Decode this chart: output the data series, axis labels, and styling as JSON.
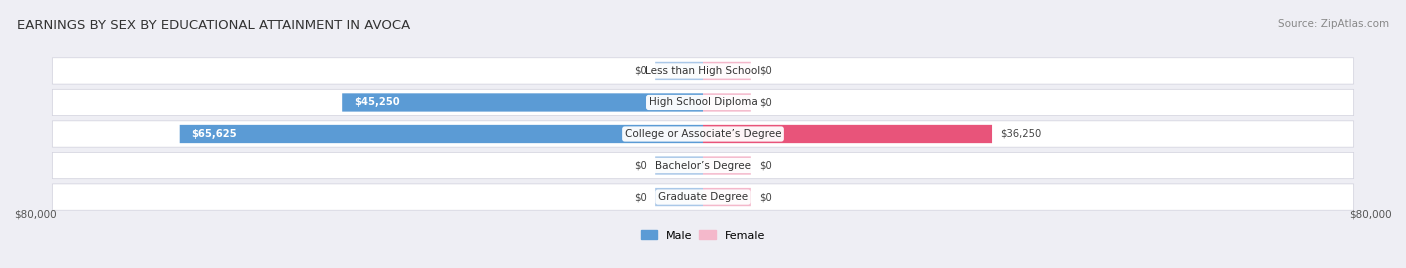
{
  "title": "EARNINGS BY SEX BY EDUCATIONAL ATTAINMENT IN AVOCA",
  "source": "Source: ZipAtlas.com",
  "categories": [
    "Less than High School",
    "High School Diploma",
    "College or Associate’s Degree",
    "Bachelor’s Degree",
    "Graduate Degree"
  ],
  "male_values": [
    0,
    45250,
    65625,
    0,
    0
  ],
  "female_values": [
    0,
    0,
    36250,
    0,
    0
  ],
  "male_color_full": "#5b9bd5",
  "male_color_stub": "#aac8e8",
  "female_color_full": "#e8547a",
  "female_color_stub": "#f4b8cb",
  "male_label": "Male",
  "female_label": "Female",
  "xlim": 80000,
  "stub_value": 6000,
  "axis_label_left": "$80,000",
  "axis_label_right": "$80,000",
  "background_color": "#eeeef4",
  "row_bg_color": "#e2e2ea",
  "title_fontsize": 9.5,
  "source_fontsize": 7.5
}
